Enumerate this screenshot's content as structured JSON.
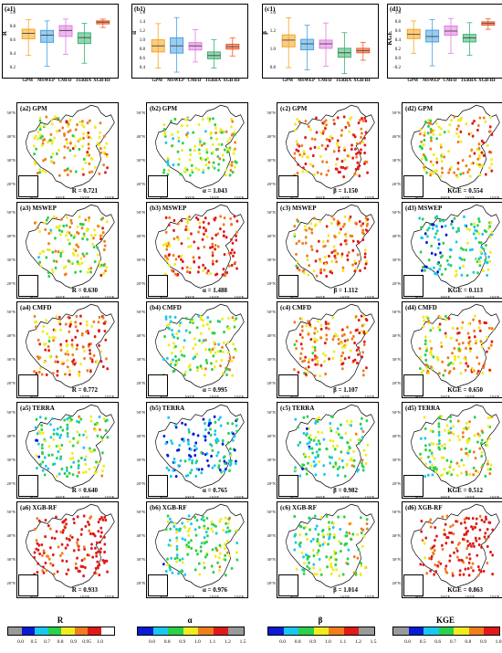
{
  "row1": [
    {
      "label": "(a1)",
      "ylabel": "R",
      "ticks": [
        "1.0",
        "0.8",
        "0.6",
        "0.4",
        "0.2"
      ],
      "cats": [
        "GPM",
        "MSWEP",
        "CMFD",
        "TERRA",
        "XGB-RF"
      ]
    },
    {
      "label": "(b1)",
      "ylabel": "α",
      "ticks": [
        "1.6",
        "1.4",
        "1.2",
        "1.0",
        "0.8",
        "0.6",
        "0.4"
      ],
      "cats": [
        "GPM",
        "MSWEP",
        "CMFD",
        "TERRA",
        "XGB-RF"
      ]
    },
    {
      "label": "(c1)",
      "ylabel": "β",
      "ticks": [
        "1.4",
        "1.2",
        "1.0",
        "0.8"
      ],
      "cats": [
        "GPM",
        "MSWEP",
        "CMFD",
        "TERRA",
        "XGB-RF"
      ]
    },
    {
      "label": "(d1)",
      "ylabel": "KGE",
      "ticks": [
        "1.0",
        "0.8",
        "0.6",
        "0.4",
        "0.2",
        "0.0",
        "-0.2"
      ],
      "cats": [
        "GPM",
        "MSWEP",
        "CMFD",
        "TERRA",
        "XGB-RF"
      ]
    }
  ],
  "lat_labels": [
    "50°N",
    "40°N",
    "30°N",
    "20°N"
  ],
  "lon_labels": [
    "90°E",
    "100°E",
    "110°E",
    "120°E"
  ],
  "maps": [
    [
      {
        "label": "(a2) GPM",
        "metric": "R = 0.721"
      },
      {
        "label": "(b2) GPM",
        "metric": "α = 1.043"
      },
      {
        "label": "(c2) GPM",
        "metric": "β = 1.150"
      },
      {
        "label": "(d2) GPM",
        "metric": "KGE = 0.554"
      }
    ],
    [
      {
        "label": "(a3) MSWEP",
        "metric": "R = 0.630"
      },
      {
        "label": "(b3) MSWEP",
        "metric": "α = 1.488"
      },
      {
        "label": "(c3) MSWEP",
        "metric": "β = 1.112"
      },
      {
        "label": "(d3) MSWEP",
        "metric": "KGE = 0.113"
      }
    ],
    [
      {
        "label": "(a4) CMFD",
        "metric": "R = 0.772"
      },
      {
        "label": "(b4) CMFD",
        "metric": "α = 0.995"
      },
      {
        "label": "(c4) CMFD",
        "metric": "β = 1.107"
      },
      {
        "label": "(d4) CMFD",
        "metric": "KGE = 0.650"
      }
    ],
    [
      {
        "label": "(a5) TERRA",
        "metric": "R = 0.640"
      },
      {
        "label": "(b5) TERRA",
        "metric": "α = 0.765"
      },
      {
        "label": "(c5) TERRA",
        "metric": "β = 0.982"
      },
      {
        "label": "(d5) TERRA",
        "metric": "KGE = 0.512"
      }
    ],
    [
      {
        "label": "(a6) XGB-RF",
        "metric": "R = 0.933"
      },
      {
        "label": "(b6) XGB-RF",
        "metric": "α = 0.976"
      },
      {
        "label": "(c6) XGB-RF",
        "metric": "β = 1.014"
      },
      {
        "label": "(d6) XGB-RF",
        "metric": "KGE = 0.863"
      }
    ]
  ],
  "colorbars": [
    {
      "title": "R",
      "ticks": [
        "0.0",
        "0.5",
        "0.7",
        "0.8",
        "0.9",
        "0.95",
        "1.0"
      ],
      "colors": [
        "#9a9a9a",
        "#0a1bd6",
        "#19c8f0",
        "#2ad14a",
        "#f0ec1f",
        "#f07d1e",
        "#e11919",
        "#ffffff"
      ]
    },
    {
      "title": "α",
      "ticks": [
        "0.0",
        "0.8",
        "0.9",
        "1.0",
        "1.1",
        "1.2",
        "1.5"
      ],
      "colors": [
        "#0a1bd6",
        "#19c8f0",
        "#2ad14a",
        "#f0ec1f",
        "#f07d1e",
        "#e11919",
        "#9a9a9a"
      ]
    },
    {
      "title": "β",
      "ticks": [
        "0.0",
        "0.8",
        "0.9",
        "1.0",
        "1.1",
        "1.2",
        "1.5"
      ],
      "colors": [
        "#0a1bd6",
        "#19c8f0",
        "#2ad14a",
        "#f0ec1f",
        "#f07d1e",
        "#e11919",
        "#9a9a9a"
      ]
    },
    {
      "title": "KGE",
      "ticks": [
        "0.0",
        "0.5",
        "0.6",
        "0.7",
        "0.8",
        "0.9",
        "1.0"
      ],
      "colors": [
        "#9a9a9a",
        "#0a1bd6",
        "#19c8f0",
        "#2ad14a",
        "#f0ec1f",
        "#f07d1e",
        "#e11919"
      ]
    }
  ],
  "box_colors": [
    "#f5a623",
    "#4aa3e0",
    "#e07de0",
    "#3cb371",
    "#f05a28"
  ]
}
